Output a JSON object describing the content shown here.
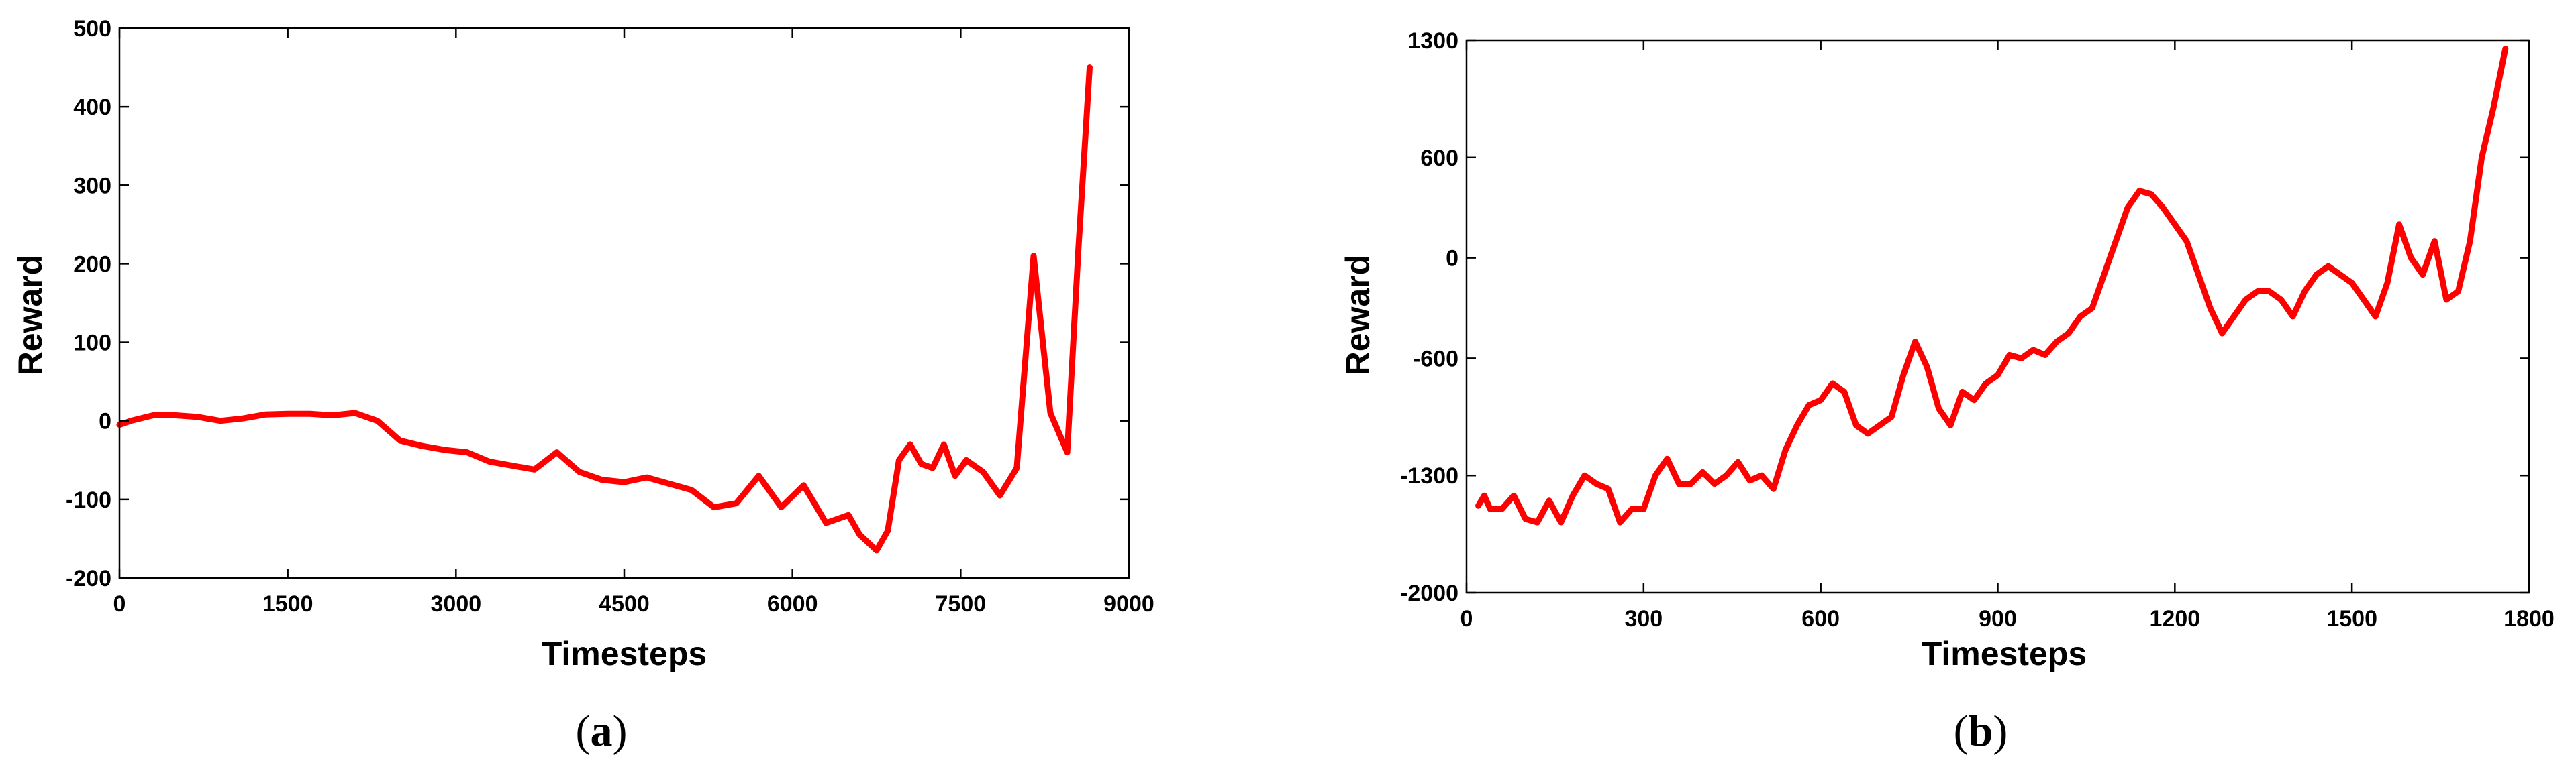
{
  "colors": {
    "line": "#ff0000",
    "axis": "#000000"
  },
  "chart_data": [
    {
      "type": "line",
      "panel_label": "a",
      "title": "",
      "xlabel": "Timesteps",
      "ylabel": "Reward",
      "xlim": [
        0,
        9000
      ],
      "ylim": [
        -200,
        500
      ],
      "xticks": [
        0,
        1500,
        3000,
        4500,
        6000,
        7500,
        9000
      ],
      "xtick_labels": [
        "0",
        "1500",
        "3000",
        "4500",
        "6000",
        "7500",
        "9000"
      ],
      "yticks": [
        -200,
        -100,
        0,
        100,
        200,
        300,
        400,
        500
      ],
      "ytick_labels": [
        "-200",
        "-100",
        "0",
        "100",
        "200",
        "300",
        "400",
        "500"
      ],
      "grid": false,
      "series": [
        {
          "x": [
            0,
            100,
            300,
            500,
            700,
            900,
            1100,
            1300,
            1500,
            1700,
            1900,
            2100,
            2300,
            2500,
            2700,
            2900,
            3100,
            3300,
            3500,
            3700,
            3900,
            4100,
            4300,
            4500,
            4700,
            4900,
            5100,
            5300,
            5500,
            5700,
            5900,
            6100,
            6300,
            6500,
            6600,
            6750,
            6850,
            6950,
            7050,
            7150,
            7250,
            7350,
            7450,
            7550,
            7700,
            7850,
            8000,
            8150,
            8300,
            8450,
            8550,
            8650
          ],
          "y": [
            -5,
            0,
            7,
            7,
            5,
            0,
            3,
            8,
            9,
            9,
            7,
            10,
            0,
            -25,
            -32,
            -37,
            -40,
            -52,
            -57,
            -62,
            -40,
            -65,
            -75,
            -78,
            -72,
            -80,
            -88,
            -110,
            -105,
            -70,
            -110,
            -82,
            -130,
            -120,
            -145,
            -165,
            -140,
            -50,
            -30,
            -55,
            -60,
            -30,
            -70,
            -50,
            -65,
            -95,
            -60,
            210,
            10,
            -40,
            220,
            450
          ]
        }
      ]
    },
    {
      "type": "line",
      "panel_label": "b",
      "title": "",
      "xlabel": "Timesteps",
      "ylabel": "Reward",
      "xlim": [
        0,
        1800
      ],
      "ylim": [
        -2000,
        1300
      ],
      "xticks": [
        0,
        300,
        600,
        900,
        1200,
        1500,
        1800
      ],
      "xtick_labels": [
        "0",
        "300",
        "600",
        "900",
        "1200",
        "1500",
        "1800"
      ],
      "yticks": [
        -2000,
        -1300,
        -600,
        0,
        600,
        1300
      ],
      "ytick_labels": [
        "-2000",
        "-1300",
        "-600",
        "0",
        "600",
        "1300"
      ],
      "grid": false,
      "series": [
        {
          "x": [
            20,
            30,
            40,
            60,
            80,
            100,
            120,
            140,
            160,
            180,
            200,
            220,
            240,
            260,
            280,
            300,
            320,
            340,
            360,
            380,
            400,
            420,
            440,
            460,
            480,
            500,
            520,
            540,
            560,
            580,
            600,
            620,
            640,
            660,
            680,
            700,
            720,
            740,
            760,
            780,
            800,
            820,
            840,
            860,
            880,
            900,
            920,
            940,
            960,
            980,
            1000,
            1020,
            1040,
            1060,
            1080,
            1100,
            1120,
            1140,
            1160,
            1180,
            1200,
            1220,
            1240,
            1260,
            1280,
            1300,
            1320,
            1340,
            1360,
            1380,
            1400,
            1420,
            1440,
            1460,
            1480,
            1500,
            1520,
            1540,
            1560,
            1580,
            1600,
            1620,
            1640,
            1660,
            1680,
            1700,
            1720,
            1740,
            1760
          ],
          "y": [
            -1480,
            -1420,
            -1500,
            -1500,
            -1420,
            -1560,
            -1580,
            -1450,
            -1580,
            -1420,
            -1300,
            -1350,
            -1380,
            -1580,
            -1500,
            -1500,
            -1300,
            -1200,
            -1350,
            -1350,
            -1280,
            -1350,
            -1300,
            -1220,
            -1330,
            -1300,
            -1380,
            -1150,
            -1000,
            -880,
            -850,
            -750,
            -800,
            -1000,
            -1050,
            -1000,
            -950,
            -700,
            -500,
            -650,
            -900,
            -1000,
            -800,
            -850,
            -750,
            -700,
            -580,
            -600,
            -550,
            -580,
            -500,
            -450,
            -350,
            -300,
            -100,
            100,
            300,
            400,
            380,
            300,
            200,
            100,
            -100,
            -300,
            -450,
            -350,
            -250,
            -200,
            -200,
            -250,
            -350,
            -200,
            -100,
            -50,
            -100,
            -150,
            -250,
            -350,
            -150,
            200,
            0,
            -100,
            100,
            -250,
            -200,
            100,
            600,
            900,
            1250
          ]
        }
      ]
    }
  ]
}
